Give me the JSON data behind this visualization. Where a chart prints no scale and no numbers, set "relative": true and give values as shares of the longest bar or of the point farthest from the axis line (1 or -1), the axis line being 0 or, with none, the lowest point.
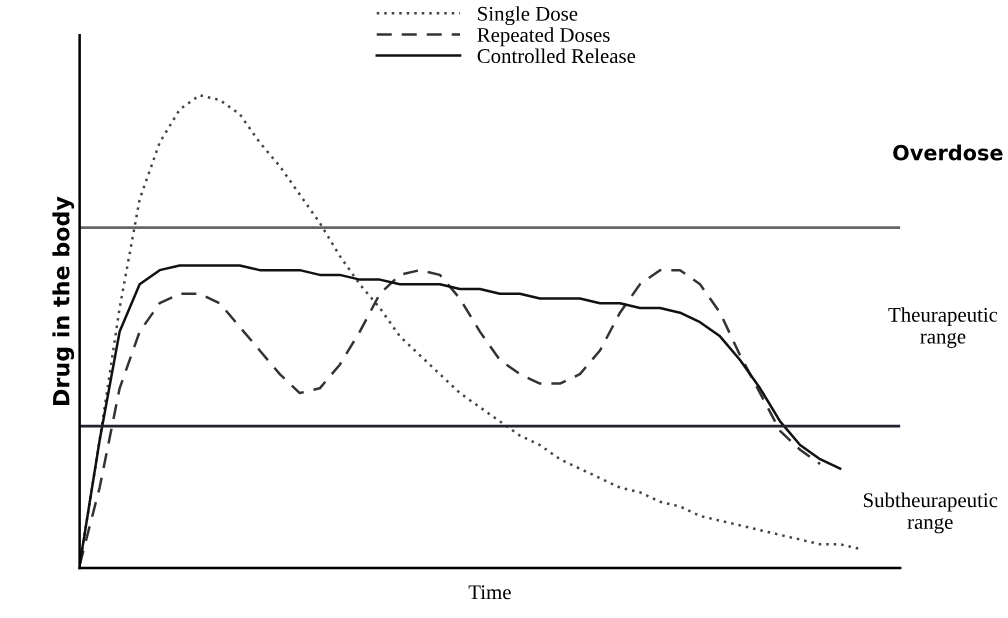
{
  "chart_data": {
    "type": "line",
    "relative": true,
    "ylabel": "Drug in the body",
    "xlabel": "Time",
    "categories": [
      null,
      null,
      null,
      null,
      null,
      null,
      null,
      null,
      null,
      null,
      null,
      null,
      null,
      null,
      null,
      null,
      null,
      null,
      null,
      null,
      null,
      null,
      null,
      null,
      null,
      null,
      null,
      null,
      null,
      null,
      null,
      null,
      null,
      null,
      null,
      null,
      null,
      null,
      null,
      null
    ],
    "series": [
      {
        "name": "Single Dose",
        "color": "#444444",
        "line_style": "dotted",
        "values": [
          0.006,
          0.27,
          0.55,
          0.78,
          0.9,
          0.97,
          1.0,
          0.99,
          0.96,
          0.9,
          0.85,
          0.79,
          0.73,
          0.66,
          0.6,
          0.55,
          0.49,
          0.45,
          0.41,
          0.37,
          0.34,
          0.31,
          0.28,
          0.26,
          0.23,
          0.21,
          0.19,
          0.17,
          0.16,
          0.14,
          0.13,
          0.11,
          0.1,
          0.09,
          0.08,
          0.07,
          0.06,
          0.05,
          0.05,
          0.04
        ]
      },
      {
        "name": "Repeated Doses",
        "color": "#333333",
        "line_style": "dashed",
        "values": [
          0.006,
          0.17,
          0.38,
          0.5,
          0.56,
          0.58,
          0.58,
          0.56,
          0.51,
          0.46,
          0.41,
          0.37,
          0.38,
          0.43,
          0.5,
          0.58,
          0.62,
          0.63,
          0.62,
          0.57,
          0.5,
          0.44,
          0.41,
          0.39,
          0.39,
          0.41,
          0.46,
          0.54,
          0.6,
          0.63,
          0.63,
          0.6,
          0.54,
          0.45,
          0.37,
          0.29,
          0.25,
          0.22,
          null,
          null
        ]
      },
      {
        "name": "Controlled Release",
        "color": "#111111",
        "line_style": "solid",
        "values": [
          0.006,
          0.27,
          0.5,
          0.6,
          0.63,
          0.64,
          0.64,
          0.64,
          0.64,
          0.63,
          0.63,
          0.63,
          0.62,
          0.62,
          0.61,
          0.61,
          0.6,
          0.6,
          0.6,
          0.59,
          0.59,
          0.58,
          0.58,
          0.57,
          0.57,
          0.57,
          0.56,
          0.56,
          0.55,
          0.55,
          0.54,
          0.52,
          0.49,
          0.44,
          0.38,
          0.31,
          0.26,
          0.23,
          0.21,
          null
        ]
      }
    ],
    "ref_lines": [
      {
        "axis": "y",
        "value": 0.72,
        "color": "#666666"
      },
      {
        "axis": "y",
        "value": 0.3,
        "color": "#222233"
      }
    ],
    "annotations": [
      "Overdose",
      "Theurapeutic\nrange",
      "Subtheurapeutic\nrange"
    ],
    "legend": "top"
  }
}
